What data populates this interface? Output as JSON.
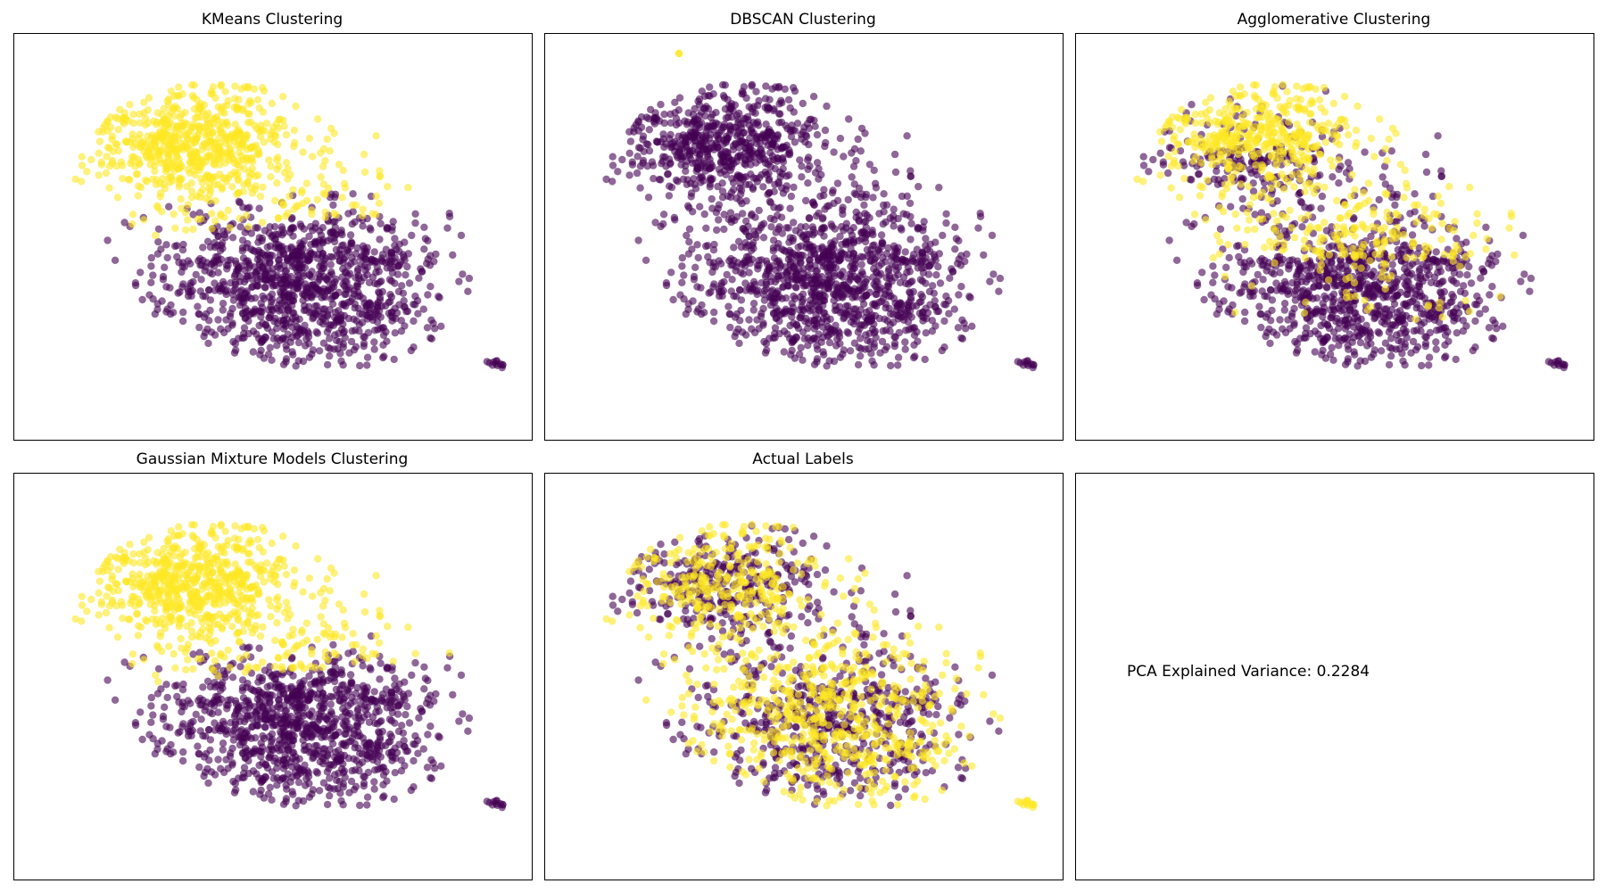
{
  "colors": {
    "cluster_0": "#440154",
    "cluster_1": "#fde725",
    "frame": "#000000",
    "background": "#ffffff"
  },
  "chart_data": [
    {
      "type": "scatter",
      "title": "KMeans Clustering",
      "grid": false,
      "ticks": false,
      "split": "y_threshold",
      "note": "purple lower-right blob, yellow upper-left cap"
    },
    {
      "type": "scatter",
      "title": "DBSCAN Clustering",
      "grid": false,
      "ticks": false,
      "split": "single",
      "note": "almost all purple, one yellow point near top"
    },
    {
      "type": "scatter",
      "title": "Agglomerative Clustering",
      "grid": false,
      "ticks": false,
      "split": "y_threshold_mixed"
    },
    {
      "type": "scatter",
      "title": "Gaussian Mixture Models Clustering",
      "grid": false,
      "ticks": false,
      "split": "y_threshold"
    },
    {
      "type": "scatter",
      "title": "Actual Labels",
      "grid": false,
      "ticks": false,
      "split": "random_mixed"
    },
    {
      "type": "text",
      "title": "",
      "text": "PCA Explained Variance: 0.2284"
    }
  ]
}
